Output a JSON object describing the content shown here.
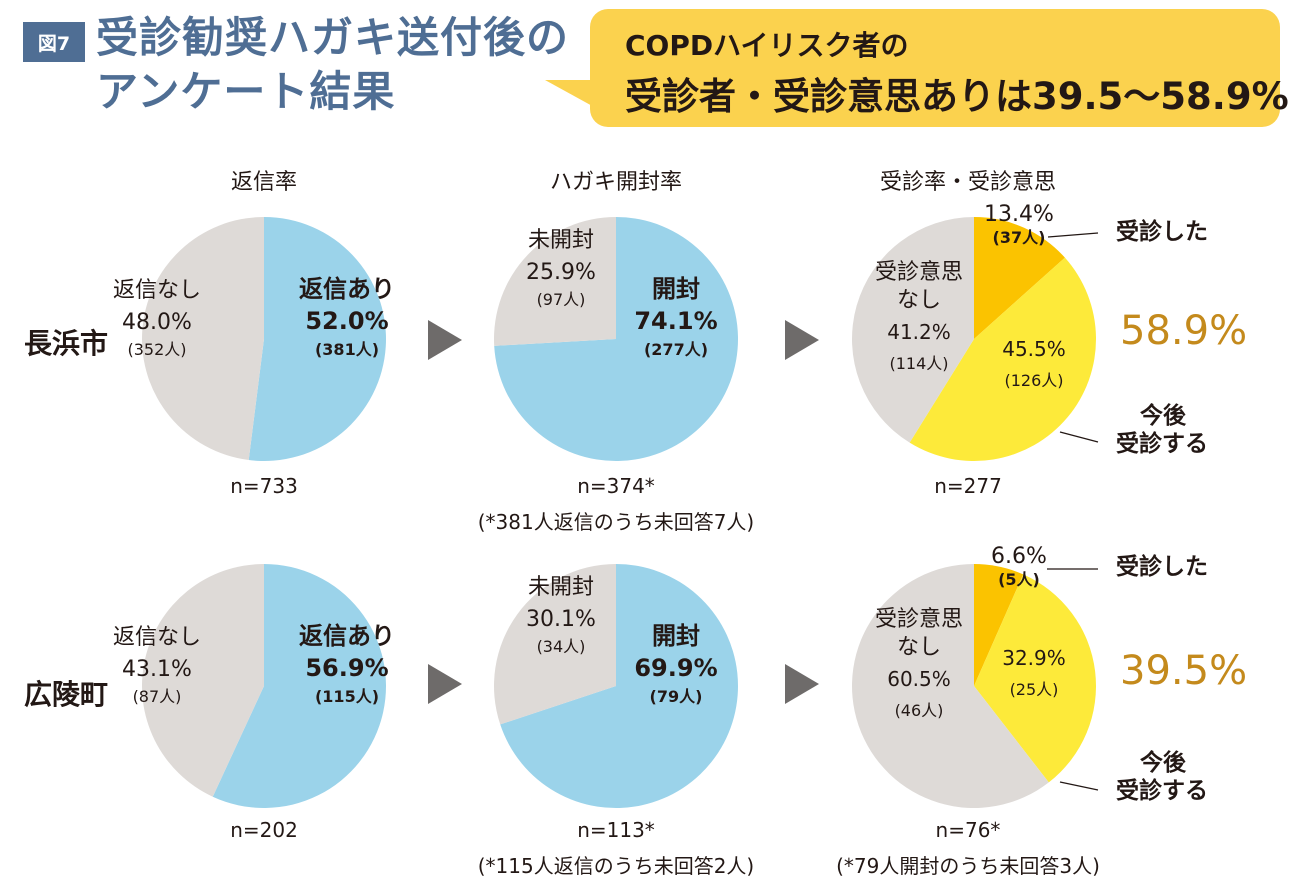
{
  "figure": {
    "badge": "図7",
    "title_line1": "受診勧奨ハガキ送付後の",
    "title_line2": "アンケート結果"
  },
  "highlight": {
    "line1": "COPDハイリスク者の",
    "line2": "受診者・受診意思ありは39.5〜58.9%"
  },
  "columns": [
    "返信率",
    "ハガキ開封率",
    "受診率・受診意思"
  ],
  "rows": [
    {
      "label": "長浜市",
      "total_pct": "58.9%",
      "callout_visited": "受診した",
      "callout_future_1": "今後",
      "callout_future_2": "受診する",
      "n_reply": "n=733",
      "n_open": "n=374*",
      "n_open_note": "(*381人返信のうち未回答7人)",
      "n_visit": "n=277",
      "n_visit_note": ""
    },
    {
      "label": "広陵町",
      "total_pct": "39.5%",
      "callout_visited": "受診した",
      "callout_future_1": "今後",
      "callout_future_2": "受診する",
      "n_reply": "n=202",
      "n_open": "n=113*",
      "n_open_note": "(*115人返信のうち未回答2人)",
      "n_visit": "n=76*",
      "n_visit_note": "(*79人開封のうち未回答3人)"
    }
  ],
  "colors": {
    "blue": "#9bd3ea",
    "gray": "#dedad7",
    "orange": "#fbc300",
    "yellow": "#fdea3a",
    "accent": "#c48a1c",
    "badge": "#4f6e94",
    "bubble": "#fbd24e"
  },
  "chart_data": [
    {
      "type": "pie",
      "title": "返信率",
      "row": "長浜市",
      "n": "n=733",
      "slices": [
        {
          "name": "返信あり",
          "value": 52.0,
          "pct": "52.0%",
          "count": "(381人)",
          "color": "#9bd3ea",
          "bold": true
        },
        {
          "name": "返信なし",
          "value": 48.0,
          "pct": "48.0%",
          "count": "(352人)",
          "color": "#dedad7",
          "bold": false
        }
      ]
    },
    {
      "type": "pie",
      "title": "ハガキ開封率",
      "row": "長浜市",
      "n": "n=374*",
      "slices": [
        {
          "name": "開封",
          "value": 74.1,
          "pct": "74.1%",
          "count": "(277人)",
          "color": "#9bd3ea",
          "bold": true
        },
        {
          "name": "未開封",
          "value": 25.9,
          "pct": "25.9%",
          "count": "(97人)",
          "color": "#dedad7",
          "bold": false
        }
      ]
    },
    {
      "type": "pie",
      "title": "受診率・受診意思",
      "row": "長浜市",
      "n": "n=277",
      "slices": [
        {
          "name": "受診した",
          "value": 13.4,
          "pct": "13.4%",
          "count": "(37人)",
          "color": "#fbc300",
          "bold": false
        },
        {
          "name": "今後受診する",
          "value": 45.5,
          "pct": "45.5%",
          "count": "(126人)",
          "color": "#fdea3a",
          "bold": false
        },
        {
          "name": "受診意思なし",
          "value": 41.2,
          "pct": "41.2%",
          "count": "(114人)",
          "color": "#dedad7",
          "bold": false
        }
      ]
    },
    {
      "type": "pie",
      "title": "返信率",
      "row": "広陵町",
      "n": "n=202",
      "slices": [
        {
          "name": "返信あり",
          "value": 56.9,
          "pct": "56.9%",
          "count": "(115人)",
          "color": "#9bd3ea",
          "bold": true
        },
        {
          "name": "返信なし",
          "value": 43.1,
          "pct": "43.1%",
          "count": "(87人)",
          "color": "#dedad7",
          "bold": false
        }
      ]
    },
    {
      "type": "pie",
      "title": "ハガキ開封率",
      "row": "広陵町",
      "n": "n=113*",
      "slices": [
        {
          "name": "開封",
          "value": 69.9,
          "pct": "69.9%",
          "count": "(79人)",
          "color": "#9bd3ea",
          "bold": true
        },
        {
          "name": "未開封",
          "value": 30.1,
          "pct": "30.1%",
          "count": "(34人)",
          "color": "#dedad7",
          "bold": false
        }
      ]
    },
    {
      "type": "pie",
      "title": "受診率・受診意思",
      "row": "広陵町",
      "n": "n=76*",
      "slices": [
        {
          "name": "受診した",
          "value": 6.6,
          "pct": "6.6%",
          "count": "(5人)",
          "color": "#fbc300",
          "bold": false
        },
        {
          "name": "今後受診する",
          "value": 32.9,
          "pct": "32.9%",
          "count": "(25人)",
          "color": "#fdea3a",
          "bold": false
        },
        {
          "name": "受診意思なし",
          "value": 60.5,
          "pct": "60.5%",
          "count": "(46人)",
          "color": "#dedad7",
          "bold": false
        }
      ]
    }
  ]
}
